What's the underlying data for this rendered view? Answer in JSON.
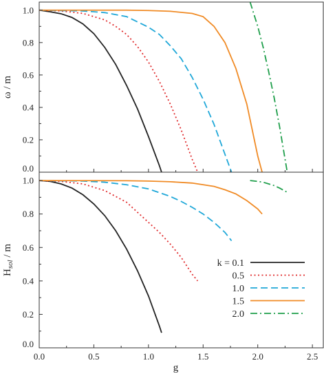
{
  "chart_data": [
    {
      "type": "line",
      "panel": "top",
      "title": "",
      "xlabel": "",
      "ylabel": "ω / m",
      "xlim": [
        0,
        2.6
      ],
      "ylim": [
        0,
        1.05
      ],
      "x_ticks": [
        "0.0",
        "0.5",
        "1.0",
        "1.5",
        "2.0",
        "2.5"
      ],
      "y_ticks": [
        "0.0",
        "0.2",
        "0.4",
        "0.6",
        "0.8",
        "1.0"
      ],
      "grid": false,
      "series": [
        {
          "k": 0.1,
          "color": "#222222",
          "style": "solid",
          "x": [
            0,
            0.1,
            0.2,
            0.3,
            0.4,
            0.5,
            0.6,
            0.7,
            0.8,
            0.9,
            1.0,
            1.1,
            1.12
          ],
          "y": [
            1.0,
            0.99,
            0.978,
            0.955,
            0.915,
            0.855,
            0.77,
            0.665,
            0.535,
            0.39,
            0.22,
            0.04,
            0.0
          ]
        },
        {
          "k": 0.5,
          "color": "#e0282a",
          "style": "dotted",
          "x": [
            0,
            0.2,
            0.4,
            0.6,
            0.7,
            0.8,
            0.9,
            1.0,
            1.1,
            1.2,
            1.3,
            1.4,
            1.45
          ],
          "y": [
            1.0,
            0.995,
            0.98,
            0.94,
            0.9,
            0.85,
            0.775,
            0.68,
            0.56,
            0.42,
            0.26,
            0.08,
            0.0
          ]
        },
        {
          "k": 1.0,
          "color": "#1ea7d8",
          "style": "dashed",
          "x": [
            0,
            0.4,
            0.6,
            0.8,
            1.0,
            1.1,
            1.2,
            1.3,
            1.4,
            1.5,
            1.6,
            1.7,
            1.76
          ],
          "y": [
            1.0,
            0.995,
            0.985,
            0.96,
            0.895,
            0.85,
            0.78,
            0.7,
            0.585,
            0.45,
            0.295,
            0.11,
            0.0
          ]
        },
        {
          "k": 1.5,
          "color": "#f08a24",
          "style": "solid",
          "x": [
            0,
            0.8,
            1.0,
            1.2,
            1.4,
            1.5,
            1.6,
            1.7,
            1.8,
            1.9,
            2.0,
            2.04
          ],
          "y": [
            1.0,
            1.0,
            0.998,
            0.993,
            0.98,
            0.96,
            0.9,
            0.8,
            0.64,
            0.42,
            0.1,
            0.0
          ]
        },
        {
          "k": 2.0,
          "color": "#1e9e4a",
          "style": "dashdot",
          "x": [
            1.93,
            2.0,
            2.05,
            2.1,
            2.15,
            2.2,
            2.25,
            2.27
          ],
          "y": [
            1.05,
            0.9,
            0.77,
            0.62,
            0.46,
            0.28,
            0.08,
            0.0
          ]
        }
      ]
    },
    {
      "type": "line",
      "panel": "bottom",
      "title": "",
      "xlabel": "g",
      "ylabel": "H_sol / m",
      "xlim": [
        0,
        2.6
      ],
      "ylim": [
        0,
        1.05
      ],
      "x_ticks": [
        "0.0",
        "0.5",
        "1.0",
        "1.5",
        "2.0",
        "2.5"
      ],
      "y_ticks": [
        "0.0",
        "0.2",
        "0.4",
        "0.6",
        "0.8",
        "1.0"
      ],
      "grid": false,
      "legend": {
        "placement": "lower-right",
        "entries": [
          {
            "label": "k = 0.1",
            "color": "#222222",
            "style": "solid"
          },
          {
            "label": "0.5",
            "color": "#e0282a",
            "style": "dotted"
          },
          {
            "label": "1.0",
            "color": "#1ea7d8",
            "style": "dashed"
          },
          {
            "label": "1.5",
            "color": "#f08a24",
            "style": "solid"
          },
          {
            "label": "2.0",
            "color": "#1e9e4a",
            "style": "dashdot"
          }
        ]
      },
      "series": [
        {
          "k": 0.1,
          "color": "#222222",
          "style": "solid",
          "x": [
            0,
            0.1,
            0.2,
            0.3,
            0.4,
            0.5,
            0.6,
            0.7,
            0.8,
            0.9,
            1.0,
            1.1,
            1.12
          ],
          "y": [
            1.0,
            0.995,
            0.98,
            0.955,
            0.915,
            0.86,
            0.79,
            0.7,
            0.59,
            0.46,
            0.31,
            0.13,
            0.09
          ]
        },
        {
          "k": 0.5,
          "color": "#e0282a",
          "style": "dotted",
          "x": [
            0,
            0.2,
            0.4,
            0.6,
            0.8,
            0.9,
            1.0,
            1.1,
            1.2,
            1.3,
            1.4,
            1.45
          ],
          "y": [
            1.0,
            0.995,
            0.98,
            0.94,
            0.87,
            0.81,
            0.75,
            0.69,
            0.62,
            0.54,
            0.44,
            0.4
          ]
        },
        {
          "k": 1.0,
          "color": "#1ea7d8",
          "style": "dashed",
          "x": [
            0,
            0.4,
            0.6,
            0.8,
            1.0,
            1.2,
            1.3,
            1.4,
            1.5,
            1.6,
            1.7,
            1.76
          ],
          "y": [
            1.0,
            0.997,
            0.99,
            0.975,
            0.95,
            0.905,
            0.875,
            0.84,
            0.8,
            0.75,
            0.69,
            0.64
          ]
        },
        {
          "k": 1.5,
          "color": "#f08a24",
          "style": "solid",
          "x": [
            0,
            0.8,
            1.0,
            1.2,
            1.4,
            1.6,
            1.7,
            1.8,
            1.9,
            2.0,
            2.04
          ],
          "y": [
            1.0,
            0.999,
            0.997,
            0.993,
            0.985,
            0.965,
            0.945,
            0.92,
            0.88,
            0.83,
            0.8
          ]
        },
        {
          "k": 2.0,
          "color": "#1e9e4a",
          "style": "dashdot",
          "x": [
            1.93,
            2.0,
            2.05,
            2.1,
            2.15,
            2.2,
            2.27
          ],
          "y": [
            1.0,
            0.995,
            0.99,
            0.98,
            0.97,
            0.955,
            0.93
          ]
        }
      ]
    }
  ]
}
